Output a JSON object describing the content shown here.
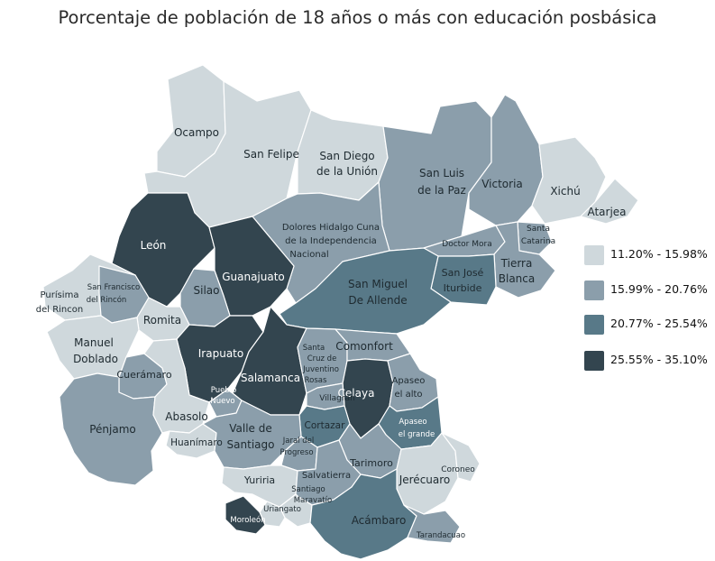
{
  "title": "Porcentaje de población de 18 años o más con educación posbásica",
  "colors": {
    "c1": "#cfd8dc",
    "c2": "#8b9eab",
    "c3": "#587988",
    "c4": "#33454f",
    "border": "#ffffff"
  },
  "legend": [
    {
      "label": "11.20% - 15.98%",
      "color": "#cfd8dc"
    },
    {
      "label": "15.99% - 20.76%",
      "color": "#8b9eab"
    },
    {
      "label": "20.77% - 25.54%",
      "color": "#587988"
    },
    {
      "label": "25.55% - 35.10%",
      "color": "#33454f"
    }
  ],
  "municipalities": [
    {
      "id": "ocampo",
      "label": "Ocampo",
      "class": 1
    },
    {
      "id": "san-felipe",
      "label": "San Felipe",
      "class": 1
    },
    {
      "id": "san-diego",
      "label": "San Diego de la Unión",
      "class": 1
    },
    {
      "id": "san-luis-paz",
      "label": "San Luis de la Paz",
      "class": 2
    },
    {
      "id": "victoria",
      "label": "Victoria",
      "class": 2
    },
    {
      "id": "xichu",
      "label": "Xichú",
      "class": 1
    },
    {
      "id": "atarjea",
      "label": "Atarjea",
      "class": 1
    },
    {
      "id": "santa-catarina",
      "label": "Santa Catarina",
      "class": 2
    },
    {
      "id": "doctor-mora",
      "label": "Doctor Mora",
      "class": 2
    },
    {
      "id": "tierra-blanca",
      "label": "Tierra Blanca",
      "class": 2
    },
    {
      "id": "san-jose-iturbide",
      "label": "San José Iturbide",
      "class": 3
    },
    {
      "id": "dolores",
      "label": "Dolores Hidalgo Cuna de la Independencia Nacional",
      "class": 2
    },
    {
      "id": "leon",
      "label": "León",
      "class": 4
    },
    {
      "id": "guanajuato",
      "label": "Guanajuato",
      "class": 4
    },
    {
      "id": "silao",
      "label": "Silao",
      "class": 2
    },
    {
      "id": "san-miguel",
      "label": "San Miguel De Allende",
      "class": 3
    },
    {
      "id": "purisima",
      "label": "Purísima del Rincon",
      "class": 1
    },
    {
      "id": "san-francisco",
      "label": "San Francisco del Rincón",
      "class": 2
    },
    {
      "id": "romita",
      "label": "Romita",
      "class": 1
    },
    {
      "id": "manuel-doblado",
      "label": "Manuel Doblado",
      "class": 1
    },
    {
      "id": "irapuato",
      "label": "Irapuato",
      "class": 4
    },
    {
      "id": "salamanca",
      "label": "Salamanca",
      "class": 4
    },
    {
      "id": "santa-cruz",
      "label": "Santa Cruz de Juventino Rosas",
      "class": 2
    },
    {
      "id": "comonfort",
      "label": "Comonfort",
      "class": 2
    },
    {
      "id": "celaya",
      "label": "Celaya",
      "class": 4
    },
    {
      "id": "apaseo-alto",
      "label": "Apaseo el alto",
      "class": 2
    },
    {
      "id": "apaseo-grande",
      "label": "Apaseo el grande",
      "class": 3
    },
    {
      "id": "cueramaro",
      "label": "Cuerámaro",
      "class": 2
    },
    {
      "id": "penjamo",
      "label": "Pénjamo",
      "class": 2
    },
    {
      "id": "abasolo",
      "label": "Abasolo",
      "class": 1
    },
    {
      "id": "pueblo-nuevo",
      "label": "Pueblo Nuevo",
      "class": 2
    },
    {
      "id": "villagran",
      "label": "Villagrán",
      "class": 2
    },
    {
      "id": "cortazar",
      "label": "Cortazar",
      "class": 3
    },
    {
      "id": "huanimaro",
      "label": "Huanímaro",
      "class": 1
    },
    {
      "id": "valle-santiago",
      "label": "Valle de Santiago",
      "class": 2
    },
    {
      "id": "jaral",
      "label": "Jaral del Progreso",
      "class": 2
    },
    {
      "id": "tarimoro",
      "label": "Tarimoro",
      "class": 2
    },
    {
      "id": "yuriria",
      "label": "Yuriria",
      "class": 1
    },
    {
      "id": "salvatierra",
      "label": "Salvatierra",
      "class": 2
    },
    {
      "id": "jerecuaro",
      "label": "Jerécuaro",
      "class": 1
    },
    {
      "id": "coroneo",
      "label": "Coroneo",
      "class": 1
    },
    {
      "id": "santiago-maravatio",
      "label": "Santiago Maravatío",
      "class": 1
    },
    {
      "id": "uriangato",
      "label": "Uriangato",
      "class": 1
    },
    {
      "id": "moroleon",
      "label": "Moroleón",
      "class": 4
    },
    {
      "id": "acambaro",
      "label": "Acámbaro",
      "class": 3
    },
    {
      "id": "tarandacuao",
      "label": "Tarandacuao",
      "class": 2
    }
  ]
}
